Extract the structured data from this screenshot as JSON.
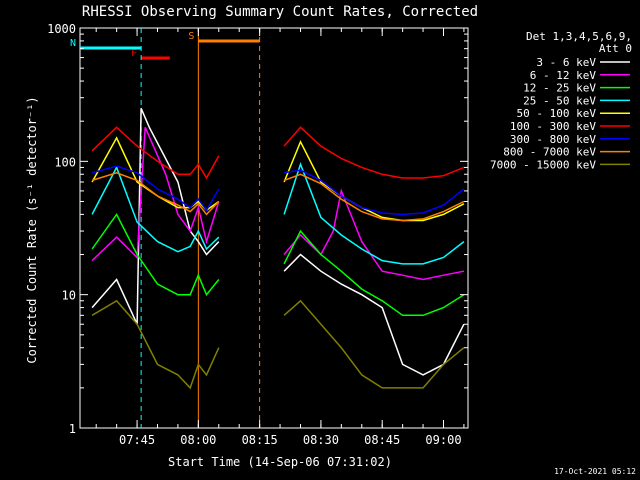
{
  "title": "RHESSI Observing Summary Count Rates, Corrected",
  "footer_date": "17-Oct-2021 05:12",
  "chart_data": {
    "type": "line",
    "title": "RHESSI Observing Summary Count Rates, Corrected",
    "xlabel": "Start Time (14-Sep-06 07:31:02)",
    "ylabel": "Corrected Count Rate (s⁻¹ detector⁻¹)",
    "y_scale": "log",
    "ylim": [
      1,
      1000
    ],
    "xlim": [
      "07:31:02",
      "09:06:00"
    ],
    "x_ticks": [
      "07:45",
      "08:00",
      "08:15",
      "08:30",
      "08:45",
      "09:00"
    ],
    "y_ticks": [
      "1",
      "10",
      "100",
      "1000"
    ],
    "legend_title": "Det 1,3,4,5,6,9,",
    "legend_subtitle": "Att 0",
    "legend_position": "right",
    "data_gap": [
      "08:05",
      "08:20"
    ],
    "annotations": [
      {
        "label": "F",
        "color": "#ff0000",
        "start": "07:46",
        "end": "07:53"
      },
      {
        "label": "N",
        "color": "#00ffff",
        "start": "07:31",
        "end": "07:46"
      },
      {
        "label": "S",
        "color": "#ff8000",
        "start": "08:00",
        "end": "08:15"
      }
    ],
    "series": [
      {
        "name": "3 - 6 keV",
        "color": "#ffffff",
        "x": [
          "07:34",
          "07:40",
          "07:45",
          "07:46",
          "07:48",
          "07:55",
          "07:58",
          "08:00",
          "08:02",
          "08:05",
          "08:21",
          "08:25",
          "08:30",
          "08:35",
          "08:40",
          "08:45",
          "08:50",
          "08:55",
          "09:00",
          "09:05"
        ],
        "y": [
          8,
          13,
          6,
          250,
          180,
          70,
          30,
          25,
          20,
          25,
          15,
          20,
          15,
          12,
          10,
          8,
          3,
          2.5,
          3,
          6
        ]
      },
      {
        "name": "6 - 12 keV",
        "color": "#ff00ff",
        "x": [
          "07:34",
          "07:40",
          "07:45",
          "07:47",
          "07:52",
          "07:55",
          "07:58",
          "08:00",
          "08:02",
          "08:05",
          "08:21",
          "08:25",
          "08:30",
          "08:33",
          "08:35",
          "08:40",
          "08:45",
          "08:50",
          "08:55",
          "09:00",
          "09:05"
        ],
        "y": [
          18,
          27,
          19,
          180,
          80,
          40,
          30,
          45,
          25,
          50,
          20,
          28,
          20,
          30,
          60,
          25,
          15,
          14,
          13,
          14,
          15
        ]
      },
      {
        "name": "12 - 25 keV",
        "color": "#00ff00",
        "x": [
          "07:34",
          "07:40",
          "07:45",
          "07:50",
          "07:55",
          "07:58",
          "08:00",
          "08:02",
          "08:05",
          "08:21",
          "08:25",
          "08:30",
          "08:35",
          "08:40",
          "08:45",
          "08:50",
          "08:55",
          "09:00",
          "09:05"
        ],
        "y": [
          22,
          40,
          20,
          12,
          10,
          10,
          14,
          10,
          13,
          17,
          30,
          20,
          15,
          11,
          9,
          7,
          7,
          8,
          10
        ]
      },
      {
        "name": "25 - 50 keV",
        "color": "#00ffff",
        "x": [
          "07:34",
          "07:40",
          "07:45",
          "07:50",
          "07:55",
          "07:58",
          "08:00",
          "08:02",
          "08:05",
          "08:21",
          "08:25",
          "08:30",
          "08:35",
          "08:40",
          "08:45",
          "08:50",
          "08:55",
          "09:00",
          "09:05"
        ],
        "y": [
          40,
          90,
          35,
          25,
          21,
          23,
          30,
          22,
          27,
          40,
          95,
          38,
          28,
          22,
          18,
          17,
          17,
          19,
          25
        ]
      },
      {
        "name": "50 - 100 keV",
        "color": "#ffff00",
        "x": [
          "07:34",
          "07:40",
          "07:45",
          "07:50",
          "07:55",
          "07:58",
          "08:00",
          "08:02",
          "08:05",
          "08:21",
          "08:25",
          "08:30",
          "08:35",
          "08:40",
          "08:45",
          "08:50",
          "08:55",
          "09:00",
          "09:05"
        ],
        "y": [
          70,
          150,
          70,
          55,
          45,
          45,
          50,
          43,
          50,
          70,
          140,
          70,
          55,
          45,
          38,
          36,
          36,
          40,
          48
        ]
      },
      {
        "name": "100 - 300 keV",
        "color": "#ff0000",
        "x": [
          "07:34",
          "07:40",
          "07:45",
          "07:50",
          "07:55",
          "07:58",
          "08:00",
          "08:02",
          "08:05",
          "08:21",
          "08:25",
          "08:30",
          "08:35",
          "08:40",
          "08:45",
          "08:50",
          "08:55",
          "09:00",
          "09:05"
        ],
        "y": [
          120,
          180,
          130,
          100,
          80,
          80,
          95,
          75,
          110,
          130,
          180,
          130,
          105,
          90,
          80,
          75,
          75,
          78,
          90
        ]
      },
      {
        "name": "300 - 800 keV",
        "color": "#0000ff",
        "x": [
          "07:34",
          "07:40",
          "07:45",
          "07:50",
          "07:55",
          "07:58",
          "08:00",
          "08:02",
          "08:05",
          "08:21",
          "08:25",
          "08:30",
          "08:35",
          "08:40",
          "08:45",
          "08:50",
          "08:55",
          "09:00",
          "09:05"
        ],
        "y": [
          82,
          92,
          82,
          62,
          52,
          45,
          52,
          43,
          62,
          82,
          86,
          72,
          55,
          45,
          41,
          40,
          41,
          47,
          62
        ]
      },
      {
        "name": "800 - 7000 keV",
        "color": "#ff8000",
        "x": [
          "07:34",
          "07:40",
          "07:45",
          "07:50",
          "07:55",
          "07:58",
          "08:00",
          "08:02",
          "08:05",
          "08:21",
          "08:25",
          "08:30",
          "08:35",
          "08:40",
          "08:45",
          "08:50",
          "08:55",
          "09:00",
          "09:05"
        ],
        "y": [
          72,
          82,
          72,
          55,
          47,
          42,
          48,
          40,
          50,
          72,
          80,
          68,
          52,
          42,
          37,
          36,
          37,
          42,
          50
        ]
      },
      {
        "name": "7000 - 15000 keV",
        "color": "#808000",
        "x": [
          "07:34",
          "07:40",
          "07:45",
          "07:50",
          "07:55",
          "07:58",
          "08:00",
          "08:02",
          "08:05",
          "08:21",
          "08:25",
          "08:30",
          "08:35",
          "08:40",
          "08:45",
          "08:50",
          "08:55",
          "09:00",
          "09:05"
        ],
        "y": [
          7,
          9,
          6,
          3,
          2.5,
          2,
          3,
          2.5,
          4,
          7,
          9,
          6,
          4,
          2.5,
          2,
          2,
          2,
          3,
          4
        ]
      }
    ]
  }
}
